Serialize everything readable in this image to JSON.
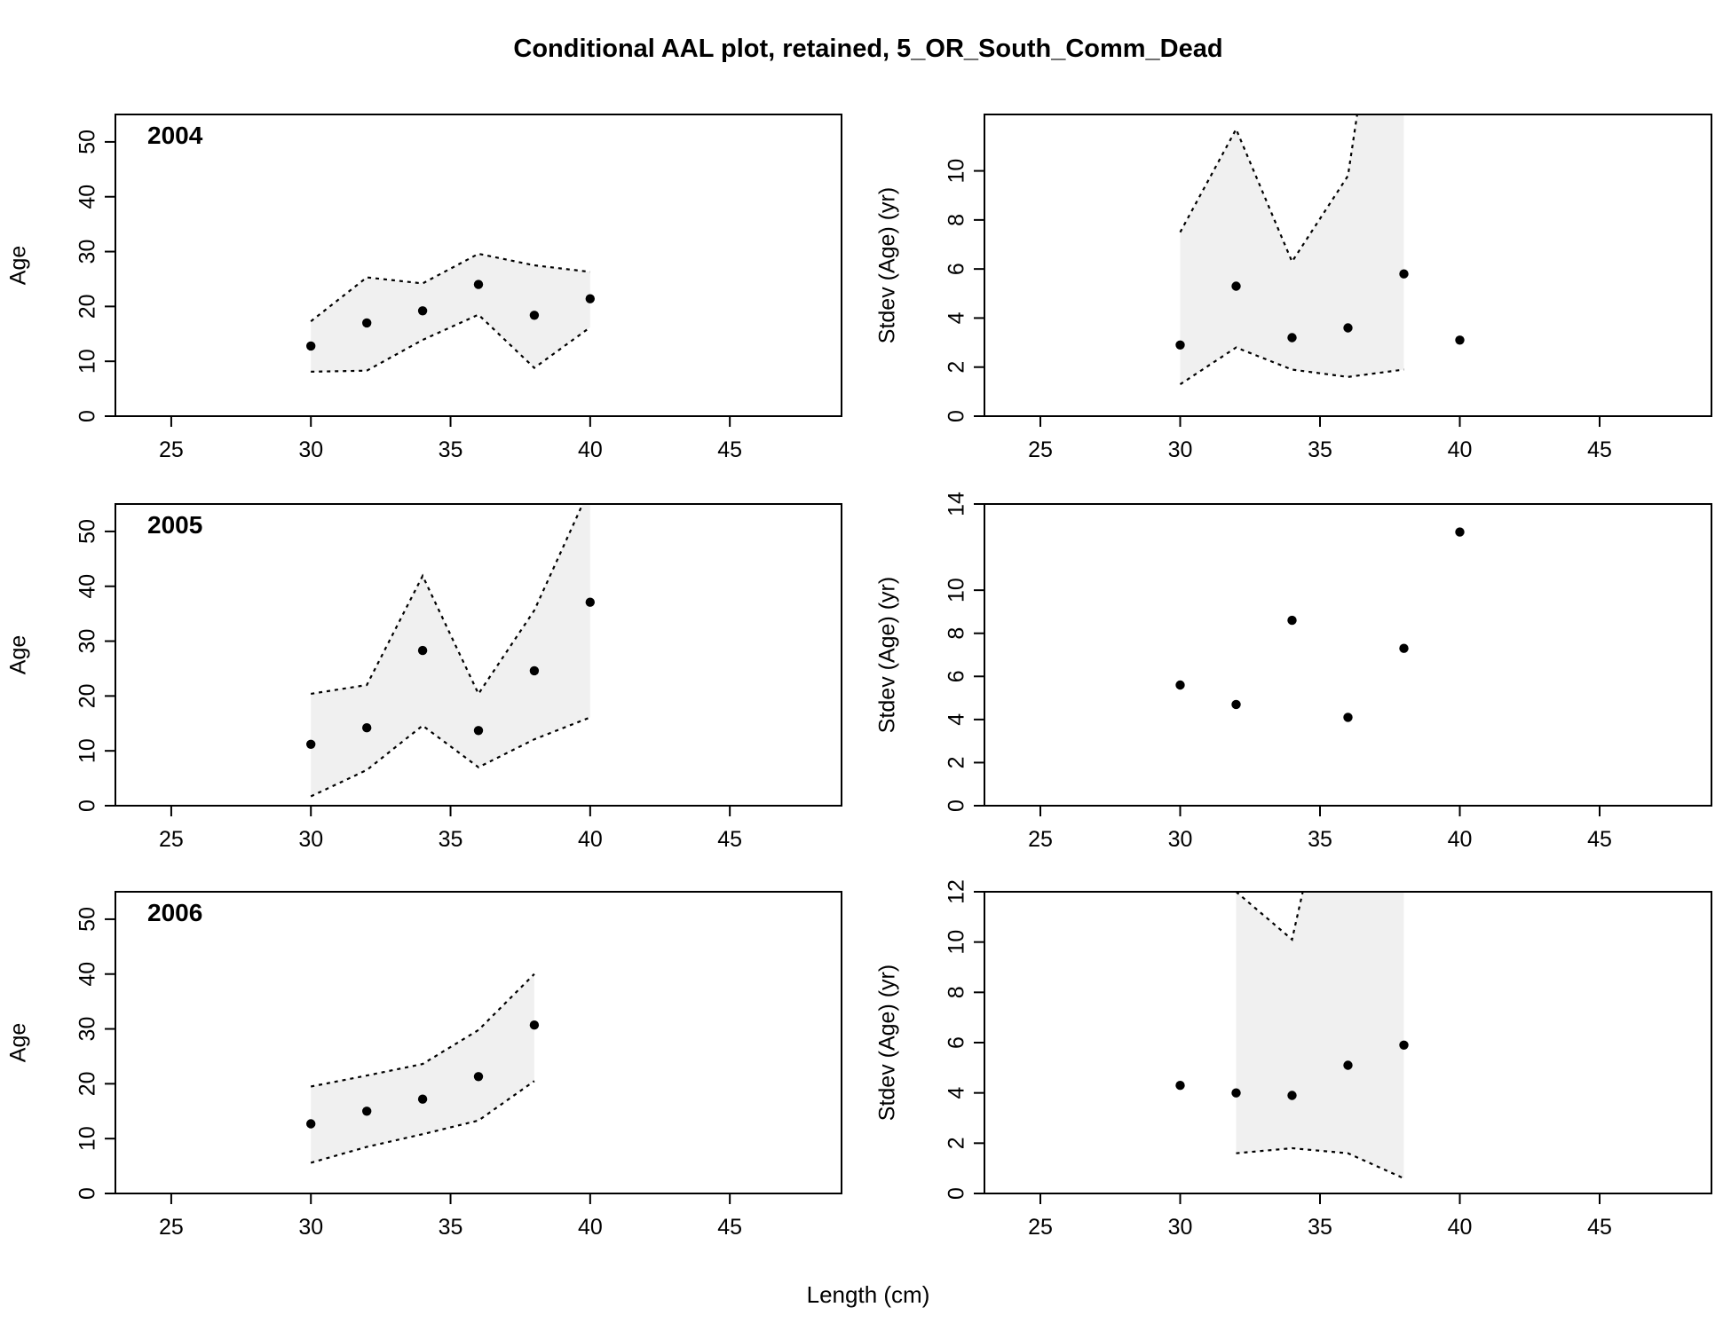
{
  "figure": {
    "title": "Conditional AAL plot, retained, 5_OR_South_Comm_Dead",
    "xlabel": "Length (cm)"
  },
  "colors": {
    "band": "#f0f0f0",
    "line": "#000000",
    "point": "#000000"
  },
  "chart_data": [
    {
      "type": "scatter",
      "panel": "age-2004",
      "label": "2004",
      "ylabel": "Age",
      "xlim": [
        23,
        49
      ],
      "ylim": [
        0,
        55
      ],
      "xticks": [
        25,
        30,
        35,
        40,
        45
      ],
      "yticks": [
        0,
        10,
        20,
        30,
        40,
        50
      ],
      "x": [
        30,
        32,
        34,
        36,
        38,
        40
      ],
      "points": [
        12.8,
        17.0,
        19.2,
        24.0,
        18.4,
        21.4
      ],
      "band_upper": [
        17.3,
        25.3,
        24.2,
        29.6,
        27.5,
        26.3
      ],
      "band_lower": [
        8.1,
        8.3,
        13.9,
        18.5,
        8.8,
        16.2
      ]
    },
    {
      "type": "scatter",
      "panel": "stdev-2004",
      "ylabel": "Stdev (Age) (yr)",
      "xlim": [
        23,
        49
      ],
      "ylim": [
        0,
        12.3
      ],
      "xticks": [
        25,
        30,
        35,
        40,
        45
      ],
      "yticks": [
        0,
        2,
        4,
        6,
        8,
        10
      ],
      "x": [
        30,
        32,
        34,
        36,
        38,
        40
      ],
      "points": [
        2.9,
        5.3,
        3.2,
        3.6,
        5.8,
        3.1
      ],
      "band_x": [
        30,
        32,
        34,
        36,
        38
      ],
      "band_upper": [
        7.5,
        11.7,
        6.3,
        9.8,
        25.0
      ],
      "band_lower": [
        1.3,
        2.8,
        1.9,
        1.6,
        1.9
      ]
    },
    {
      "type": "scatter",
      "panel": "age-2005",
      "label": "2005",
      "ylabel": "Age",
      "xlim": [
        23,
        49
      ],
      "ylim": [
        0,
        55
      ],
      "xticks": [
        25,
        30,
        35,
        40,
        45
      ],
      "yticks": [
        0,
        10,
        20,
        30,
        40,
        50
      ],
      "x": [
        30,
        32,
        34,
        36,
        38,
        40
      ],
      "points": [
        11.2,
        14.2,
        28.3,
        13.7,
        24.6,
        37.1
      ],
      "band_upper": [
        20.4,
        22.0,
        41.9,
        20.4,
        35.6,
        58.0
      ],
      "band_lower": [
        1.7,
        6.5,
        14.6,
        7.0,
        12.1,
        16.1
      ]
    },
    {
      "type": "scatter",
      "panel": "stdev-2005",
      "ylabel": "Stdev (Age) (yr)",
      "xlim": [
        23,
        49
      ],
      "ylim": [
        0,
        14
      ],
      "xticks": [
        25,
        30,
        35,
        40,
        45
      ],
      "yticks": [
        0,
        2,
        4,
        6,
        8,
        10,
        14
      ],
      "x": [
        30,
        32,
        34,
        36,
        38,
        40
      ],
      "points": [
        5.6,
        4.7,
        8.6,
        4.1,
        7.3,
        12.7
      ]
    },
    {
      "type": "scatter",
      "panel": "age-2006",
      "label": "2006",
      "ylabel": "Age",
      "xlim": [
        23,
        49
      ],
      "ylim": [
        0,
        55
      ],
      "xticks": [
        25,
        30,
        35,
        40,
        45
      ],
      "yticks": [
        0,
        10,
        20,
        30,
        40,
        50
      ],
      "x": [
        30,
        32,
        34,
        36,
        38
      ],
      "points": [
        12.7,
        15.0,
        17.2,
        21.3,
        30.7
      ],
      "band_upper": [
        19.5,
        21.5,
        23.6,
        29.8,
        40.0
      ],
      "band_lower": [
        5.6,
        8.5,
        10.8,
        13.3,
        20.5
      ]
    },
    {
      "type": "scatter",
      "panel": "stdev-2006",
      "ylabel": "Stdev (Age) (yr)",
      "xlim": [
        23,
        49
      ],
      "ylim": [
        0,
        12
      ],
      "xticks": [
        25,
        30,
        35,
        40,
        45
      ],
      "yticks": [
        0,
        2,
        4,
        6,
        8,
        10,
        12
      ],
      "x": [
        30,
        32,
        34,
        36,
        38
      ],
      "points": [
        4.3,
        4.0,
        3.9,
        5.1,
        5.9
      ],
      "band_x": [
        32,
        34,
        36,
        38
      ],
      "band_upper": [
        12.0,
        10.1,
        20.0,
        40.0
      ],
      "band_lower": [
        1.6,
        1.8,
        1.6,
        0.6
      ]
    }
  ]
}
